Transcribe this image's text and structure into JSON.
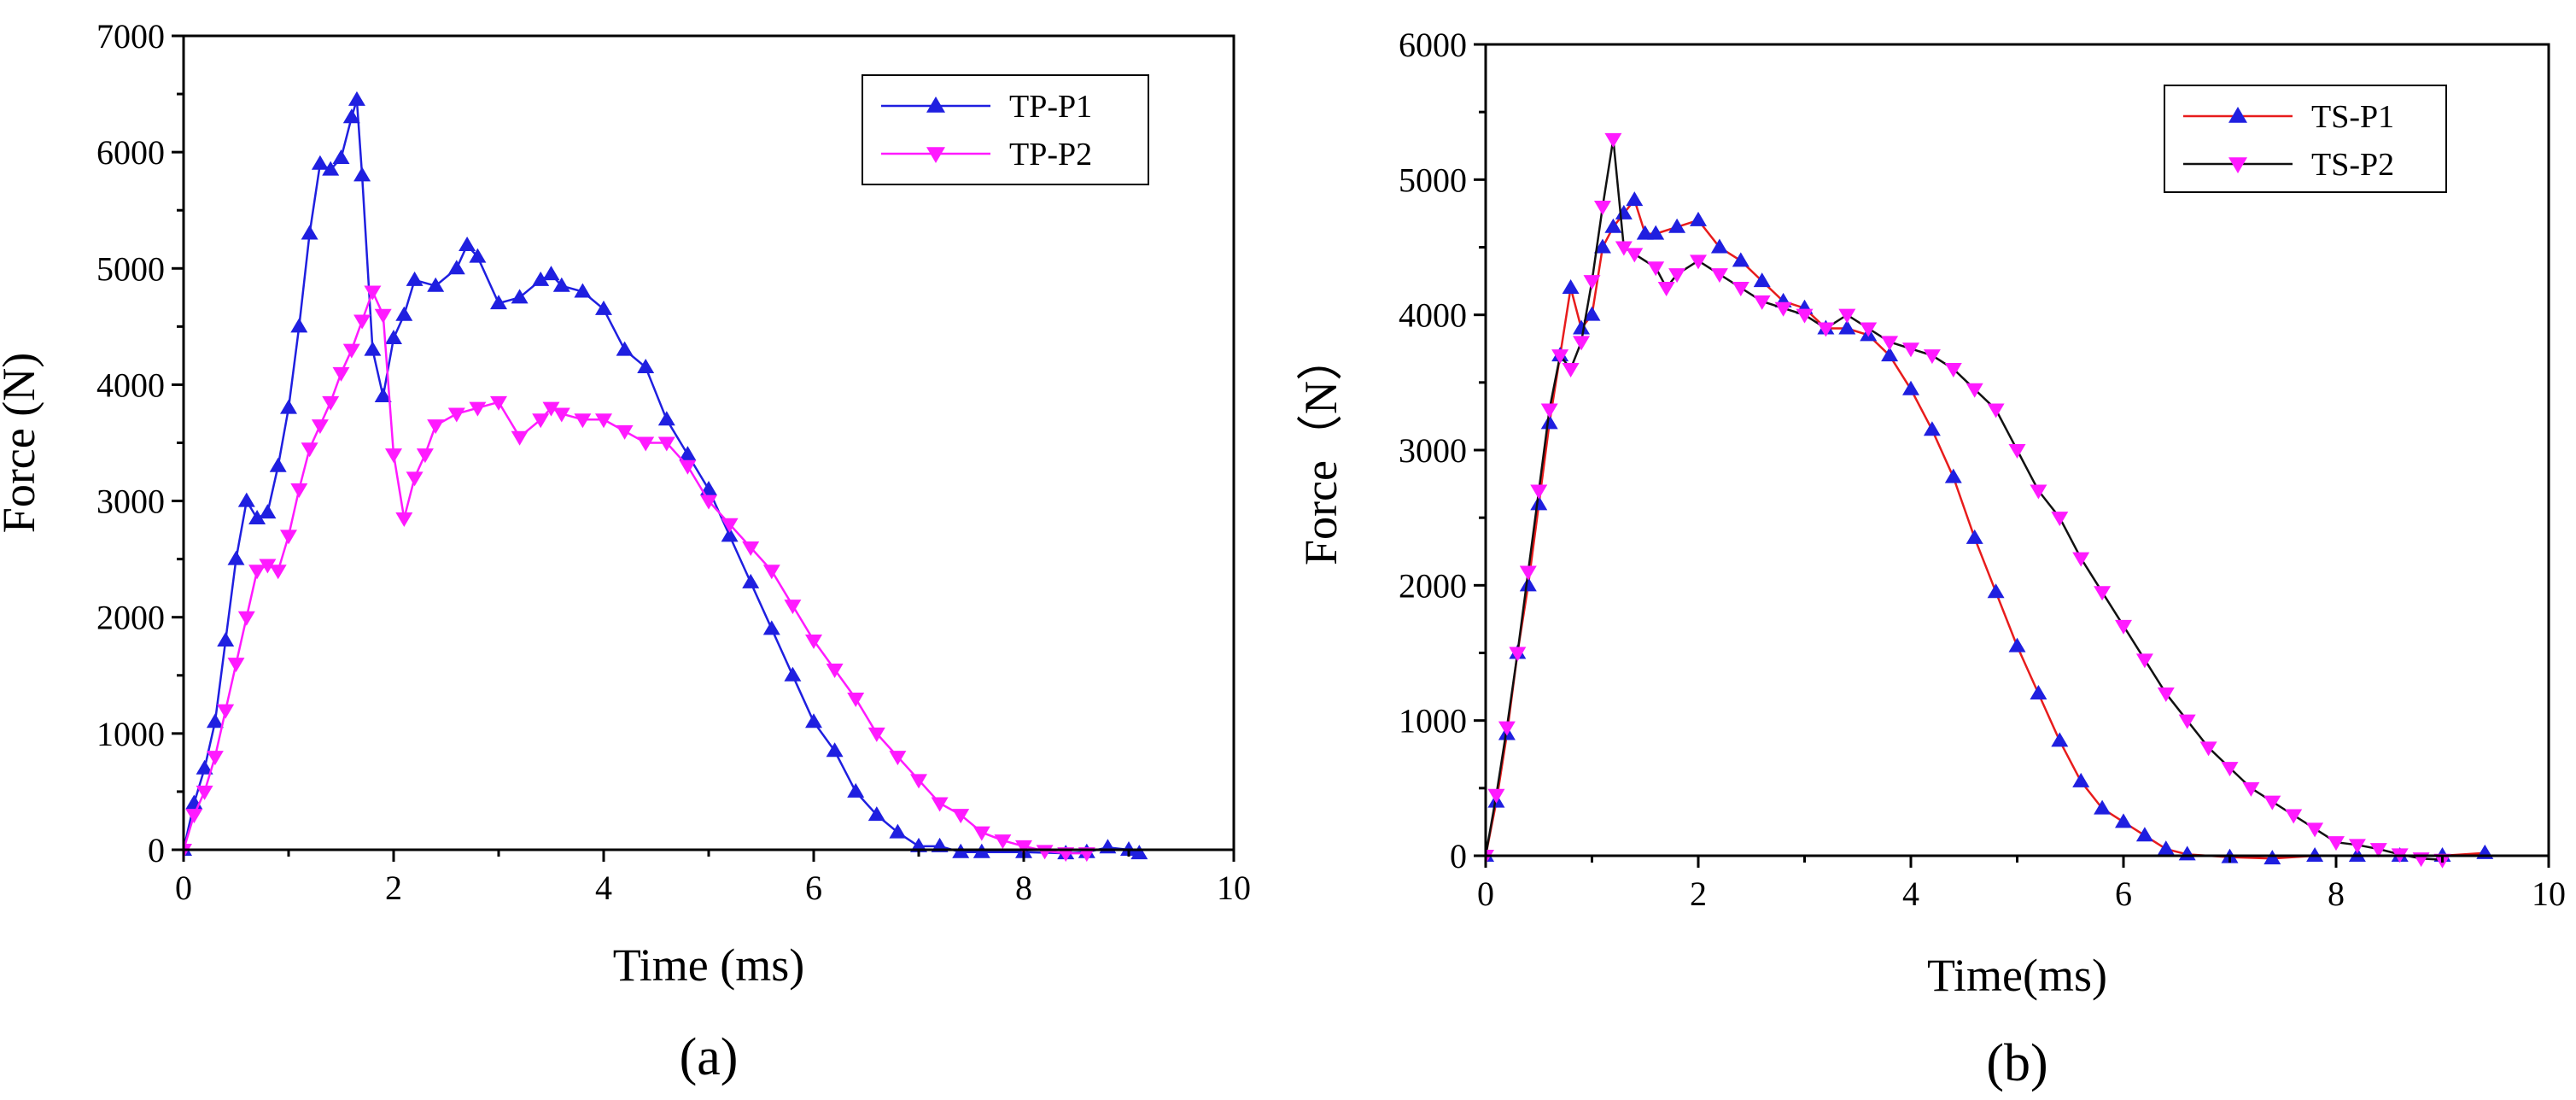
{
  "chart_data": [
    {
      "panel_label": "(a)",
      "type": "line",
      "xlabel": "Time (ms)",
      "ylabel": "Force (N)",
      "xlim": [
        0,
        10
      ],
      "ylim": [
        0,
        7000
      ],
      "x_ticks": [
        0,
        2,
        4,
        6,
        8,
        10
      ],
      "y_ticks": [
        0,
        1000,
        2000,
        3000,
        4000,
        5000,
        6000,
        7000
      ],
      "grid": false,
      "legend_position": "top-right",
      "series": [
        {
          "name": "TP-P1",
          "color": "#1f1fe0",
          "marker": "triangle-up",
          "points": [
            [
              0,
              0
            ],
            [
              0.1,
              400
            ],
            [
              0.2,
              700
            ],
            [
              0.3,
              1100
            ],
            [
              0.4,
              1800
            ],
            [
              0.5,
              2500
            ],
            [
              0.6,
              3000
            ],
            [
              0.7,
              2850
            ],
            [
              0.8,
              2900
            ],
            [
              0.9,
              3300
            ],
            [
              1.0,
              3800
            ],
            [
              1.1,
              4500
            ],
            [
              1.2,
              5300
            ],
            [
              1.3,
              5900
            ],
            [
              1.4,
              5850
            ],
            [
              1.5,
              5950
            ],
            [
              1.6,
              6300
            ],
            [
              1.65,
              6450
            ],
            [
              1.7,
              5800
            ],
            [
              1.8,
              4300
            ],
            [
              1.9,
              3900
            ],
            [
              2.0,
              4400
            ],
            [
              2.1,
              4600
            ],
            [
              2.2,
              4900
            ],
            [
              2.4,
              4850
            ],
            [
              2.6,
              5000
            ],
            [
              2.7,
              5200
            ],
            [
              2.8,
              5100
            ],
            [
              3.0,
              4700
            ],
            [
              3.2,
              4750
            ],
            [
              3.4,
              4900
            ],
            [
              3.5,
              4950
            ],
            [
              3.6,
              4850
            ],
            [
              3.8,
              4800
            ],
            [
              4.0,
              4650
            ],
            [
              4.2,
              4300
            ],
            [
              4.4,
              4150
            ],
            [
              4.6,
              3700
            ],
            [
              4.8,
              3400
            ],
            [
              5.0,
              3100
            ],
            [
              5.2,
              2700
            ],
            [
              5.4,
              2300
            ],
            [
              5.6,
              1900
            ],
            [
              5.8,
              1500
            ],
            [
              6.0,
              1100
            ],
            [
              6.2,
              850
            ],
            [
              6.4,
              500
            ],
            [
              6.6,
              300
            ],
            [
              6.8,
              150
            ],
            [
              7.0,
              30
            ],
            [
              7.2,
              30
            ],
            [
              7.4,
              -20
            ],
            [
              7.6,
              -20
            ],
            [
              8.0,
              -20
            ],
            [
              8.4,
              -30
            ],
            [
              8.6,
              -20
            ],
            [
              8.8,
              20
            ],
            [
              9.0,
              0
            ],
            [
              9.1,
              -30
            ]
          ]
        },
        {
          "name": "TP-P2",
          "color": "#ff1aff",
          "marker": "triangle-down",
          "points": [
            [
              0,
              0
            ],
            [
              0.1,
              300
            ],
            [
              0.2,
              500
            ],
            [
              0.3,
              800
            ],
            [
              0.4,
              1200
            ],
            [
              0.5,
              1600
            ],
            [
              0.6,
              2000
            ],
            [
              0.7,
              2400
            ],
            [
              0.8,
              2450
            ],
            [
              0.9,
              2400
            ],
            [
              1.0,
              2700
            ],
            [
              1.1,
              3100
            ],
            [
              1.2,
              3450
            ],
            [
              1.3,
              3650
            ],
            [
              1.4,
              3850
            ],
            [
              1.5,
              4100
            ],
            [
              1.6,
              4300
            ],
            [
              1.7,
              4550
            ],
            [
              1.8,
              4800
            ],
            [
              1.9,
              4600
            ],
            [
              2.0,
              3400
            ],
            [
              2.1,
              2850
            ],
            [
              2.2,
              3200
            ],
            [
              2.3,
              3400
            ],
            [
              2.4,
              3650
            ],
            [
              2.6,
              3750
            ],
            [
              2.8,
              3800
            ],
            [
              3.0,
              3850
            ],
            [
              3.2,
              3550
            ],
            [
              3.4,
              3700
            ],
            [
              3.5,
              3800
            ],
            [
              3.6,
              3750
            ],
            [
              3.8,
              3700
            ],
            [
              4.0,
              3700
            ],
            [
              4.2,
              3600
            ],
            [
              4.4,
              3500
            ],
            [
              4.6,
              3500
            ],
            [
              4.8,
              3300
            ],
            [
              5.0,
              3000
            ],
            [
              5.2,
              2800
            ],
            [
              5.4,
              2600
            ],
            [
              5.6,
              2400
            ],
            [
              5.8,
              2100
            ],
            [
              6.0,
              1800
            ],
            [
              6.2,
              1550
            ],
            [
              6.4,
              1300
            ],
            [
              6.6,
              1000
            ],
            [
              6.8,
              800
            ],
            [
              7.0,
              600
            ],
            [
              7.2,
              400
            ],
            [
              7.4,
              300
            ],
            [
              7.6,
              150
            ],
            [
              7.8,
              80
            ],
            [
              8.0,
              30
            ],
            [
              8.2,
              -10
            ],
            [
              8.4,
              -30
            ],
            [
              8.6,
              -30
            ]
          ]
        }
      ]
    },
    {
      "panel_label": "(b)",
      "type": "line",
      "xlabel": "Time(ms)",
      "ylabel": "Force（N）",
      "xlim": [
        0,
        10
      ],
      "ylim": [
        0,
        6000
      ],
      "x_ticks": [
        0,
        2,
        4,
        6,
        8,
        10
      ],
      "y_ticks": [
        0,
        1000,
        2000,
        3000,
        4000,
        5000,
        6000
      ],
      "grid": false,
      "legend_position": "top-right",
      "legend": [
        {
          "name": "TS-P1",
          "line_color": "#e81c1c",
          "marker_color": "#1f1fe0",
          "marker": "triangle-up"
        },
        {
          "name": "TS-P2",
          "line_color": "#111111",
          "marker_color": "#ff1aff",
          "marker": "triangle-down"
        }
      ],
      "series": [
        {
          "name": "TS-P1",
          "line_color": "#e81c1c",
          "marker_color": "#1f1fe0",
          "marker": "triangle-up",
          "points": [
            [
              0,
              0
            ],
            [
              0.1,
              400
            ],
            [
              0.2,
              900
            ],
            [
              0.3,
              1500
            ],
            [
              0.4,
              2000
            ],
            [
              0.5,
              2600
            ],
            [
              0.6,
              3200
            ],
            [
              0.7,
              3700
            ],
            [
              0.8,
              4200
            ],
            [
              0.9,
              3900
            ],
            [
              1.0,
              4000
            ],
            [
              1.1,
              4500
            ],
            [
              1.2,
              4650
            ],
            [
              1.3,
              4750
            ],
            [
              1.4,
              4850
            ],
            [
              1.5,
              4600
            ],
            [
              1.6,
              4600
            ],
            [
              1.8,
              4650
            ],
            [
              2.0,
              4700
            ],
            [
              2.2,
              4500
            ],
            [
              2.4,
              4400
            ],
            [
              2.6,
              4250
            ],
            [
              2.8,
              4100
            ],
            [
              3.0,
              4050
            ],
            [
              3.2,
              3900
            ],
            [
              3.4,
              3900
            ],
            [
              3.6,
              3850
            ],
            [
              3.8,
              3700
            ],
            [
              4.0,
              3450
            ],
            [
              4.2,
              3150
            ],
            [
              4.4,
              2800
            ],
            [
              4.6,
              2350
            ],
            [
              4.8,
              1950
            ],
            [
              5.0,
              1550
            ],
            [
              5.2,
              1200
            ],
            [
              5.4,
              850
            ],
            [
              5.6,
              550
            ],
            [
              5.8,
              350
            ],
            [
              6.0,
              250
            ],
            [
              6.2,
              150
            ],
            [
              6.4,
              50
            ],
            [
              6.6,
              10
            ],
            [
              7.0,
              -10
            ],
            [
              7.4,
              -20
            ],
            [
              7.8,
              0
            ],
            [
              8.2,
              0
            ],
            [
              8.6,
              0
            ],
            [
              9.0,
              0
            ],
            [
              9.4,
              20
            ]
          ]
        },
        {
          "name": "TS-P2",
          "line_color": "#111111",
          "marker_color": "#ff1aff",
          "marker": "triangle-down",
          "points": [
            [
              0,
              0
            ],
            [
              0.1,
              450
            ],
            [
              0.2,
              950
            ],
            [
              0.3,
              1500
            ],
            [
              0.4,
              2100
            ],
            [
              0.5,
              2700
            ],
            [
              0.6,
              3300
            ],
            [
              0.7,
              3700
            ],
            [
              0.8,
              3600
            ],
            [
              0.9,
              3800
            ],
            [
              1.0,
              4250
            ],
            [
              1.1,
              4800
            ],
            [
              1.2,
              5300
            ],
            [
              1.3,
              4500
            ],
            [
              1.4,
              4450
            ],
            [
              1.6,
              4350
            ],
            [
              1.7,
              4200
            ],
            [
              1.8,
              4300
            ],
            [
              2.0,
              4400
            ],
            [
              2.2,
              4300
            ],
            [
              2.4,
              4200
            ],
            [
              2.6,
              4100
            ],
            [
              2.8,
              4050
            ],
            [
              3.0,
              4000
            ],
            [
              3.2,
              3900
            ],
            [
              3.4,
              4000
            ],
            [
              3.6,
              3900
            ],
            [
              3.8,
              3800
            ],
            [
              4.0,
              3750
            ],
            [
              4.2,
              3700
            ],
            [
              4.4,
              3600
            ],
            [
              4.6,
              3450
            ],
            [
              4.8,
              3300
            ],
            [
              5.0,
              3000
            ],
            [
              5.2,
              2700
            ],
            [
              5.4,
              2500
            ],
            [
              5.6,
              2200
            ],
            [
              5.8,
              1950
            ],
            [
              6.0,
              1700
            ],
            [
              6.2,
              1450
            ],
            [
              6.4,
              1200
            ],
            [
              6.6,
              1000
            ],
            [
              6.8,
              800
            ],
            [
              7.0,
              650
            ],
            [
              7.2,
              500
            ],
            [
              7.4,
              400
            ],
            [
              7.6,
              300
            ],
            [
              7.8,
              200
            ],
            [
              8.0,
              100
            ],
            [
              8.2,
              80
            ],
            [
              8.4,
              50
            ],
            [
              8.6,
              10
            ],
            [
              8.8,
              -20
            ],
            [
              9.0,
              -30
            ]
          ]
        }
      ]
    }
  ]
}
